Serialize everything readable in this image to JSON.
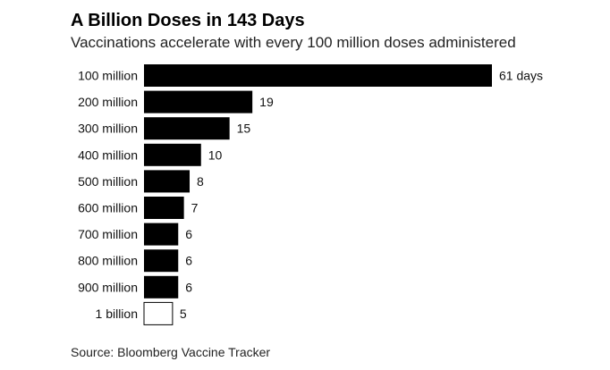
{
  "header": {
    "title": "A Billion Doses in 143 Days",
    "subtitle": "Vaccinations accelerate with every 100 million doses administered"
  },
  "footer": {
    "source": "Source: Bloomberg Vaccine Tracker"
  },
  "colors": {
    "bar": "#000000",
    "bar_highlight_fill": "#ffffff",
    "bar_highlight_stroke": "#000000"
  },
  "chart_data": {
    "type": "bar",
    "orientation": "horizontal",
    "categories": [
      "100 million",
      "200 million",
      "300 million",
      "400 million",
      "500 million",
      "600 million",
      "700 million",
      "800 million",
      "900 million",
      "1 billion"
    ],
    "values": [
      61,
      19,
      15,
      10,
      8,
      7,
      6,
      6,
      6,
      5
    ],
    "value_labels": [
      "61 days",
      "19",
      "15",
      "10",
      "8",
      "7",
      "6",
      "6",
      "6",
      "5"
    ],
    "highlight_index": 9,
    "xlim": [
      0,
      61
    ],
    "grid": false,
    "legend": "none"
  }
}
